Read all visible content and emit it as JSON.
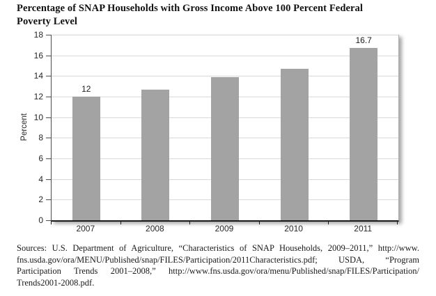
{
  "title_lines": [
    "Percentage of SNAP Households with Gross Income Above 100 Percent Federal",
    "Poverty Level"
  ],
  "chart_data": {
    "type": "bar",
    "title": "Percentage of SNAP Households with Gross Income Above 100 Percent Federal Poverty Level",
    "categories": [
      "2007",
      "2008",
      "2009",
      "2010",
      "2011"
    ],
    "values": [
      12,
      12.7,
      13.9,
      14.7,
      16.7
    ],
    "bar_labels": [
      "12",
      "",
      "",
      "",
      "16.7"
    ],
    "xlabel": "",
    "ylabel": "Percent",
    "ylim": [
      0,
      18
    ],
    "ytick_step": 2,
    "grid": true,
    "legend": false
  },
  "colors": {
    "bar": "#a3a3a3",
    "gridline": "#d9d9d9",
    "y_axis": "#4d4d4d",
    "x_axis": "#1a1a1a",
    "plot_border": "#ababab",
    "label_text": "#262626"
  },
  "source_note": {
    "lines": [
      "Sources: U.S. Department of Agriculture, “Characteristics of SNAP Households, 2009–2011,” http://www.",
      "fns.usda.gov/ora/MENU/Published/snap/FILES/Participation/2011Characteristics.pdf; USDA, “Program",
      "Participation Trends 2001–2008,” http://www.fns.usda.gov/ora/menu/Published/snap/FILES/Participation/",
      "Trends2001-2008.pdf."
    ]
  }
}
